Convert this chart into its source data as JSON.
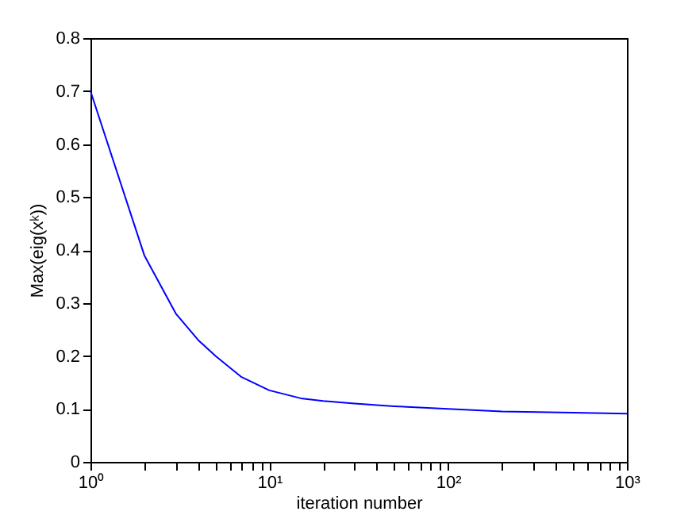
{
  "chart_data": {
    "type": "line",
    "xlabel": "iteration number",
    "ylabel": "Max(eig(xᵏ))",
    "log": "x",
    "x": [
      1,
      2,
      3,
      4,
      5,
      7,
      10,
      15,
      20,
      30,
      50,
      100,
      200,
      500,
      1000
    ],
    "series": [
      {
        "color": "#0000ff",
        "values": [
          0.7,
          0.39,
          0.28,
          0.23,
          0.2,
          0.16,
          0.135,
          0.12,
          0.115,
          0.11,
          0.105,
          0.1,
          0.095,
          0.093,
          0.091
        ]
      }
    ],
    "xlim": [
      1,
      1000
    ],
    "xticks": [
      {
        "value": 1,
        "label": "10⁰"
      },
      {
        "value": 2,
        "label": null
      },
      {
        "value": 3,
        "label": null
      },
      {
        "value": 4,
        "label": null
      },
      {
        "value": 5,
        "label": null
      },
      {
        "value": 6,
        "label": null
      },
      {
        "value": 7,
        "label": null
      },
      {
        "value": 8,
        "label": null
      },
      {
        "value": 9,
        "label": null
      },
      {
        "value": 10,
        "label": "10¹"
      },
      {
        "value": 20,
        "label": null
      },
      {
        "value": 30,
        "label": null
      },
      {
        "value": 40,
        "label": null
      },
      {
        "value": 50,
        "label": null
      },
      {
        "value": 60,
        "label": null
      },
      {
        "value": 70,
        "label": null
      },
      {
        "value": 80,
        "label": null
      },
      {
        "value": 90,
        "label": null
      },
      {
        "value": 100,
        "label": "10²"
      },
      {
        "value": 200,
        "label": null
      },
      {
        "value": 300,
        "label": null
      },
      {
        "value": 400,
        "label": null
      },
      {
        "value": 500,
        "label": null
      },
      {
        "value": 600,
        "label": null
      },
      {
        "value": 700,
        "label": null
      },
      {
        "value": 800,
        "label": null
      },
      {
        "value": 900,
        "label": null
      },
      {
        "value": 1000,
        "label": "10³"
      }
    ],
    "ylim": [
      0,
      0.8
    ],
    "yticks": [
      0,
      0.1,
      0.2,
      0.3,
      0.4,
      0.5,
      0.6,
      0.7,
      0.8
    ],
    "grid": false,
    "marker": "none",
    "line_style": "solid"
  }
}
